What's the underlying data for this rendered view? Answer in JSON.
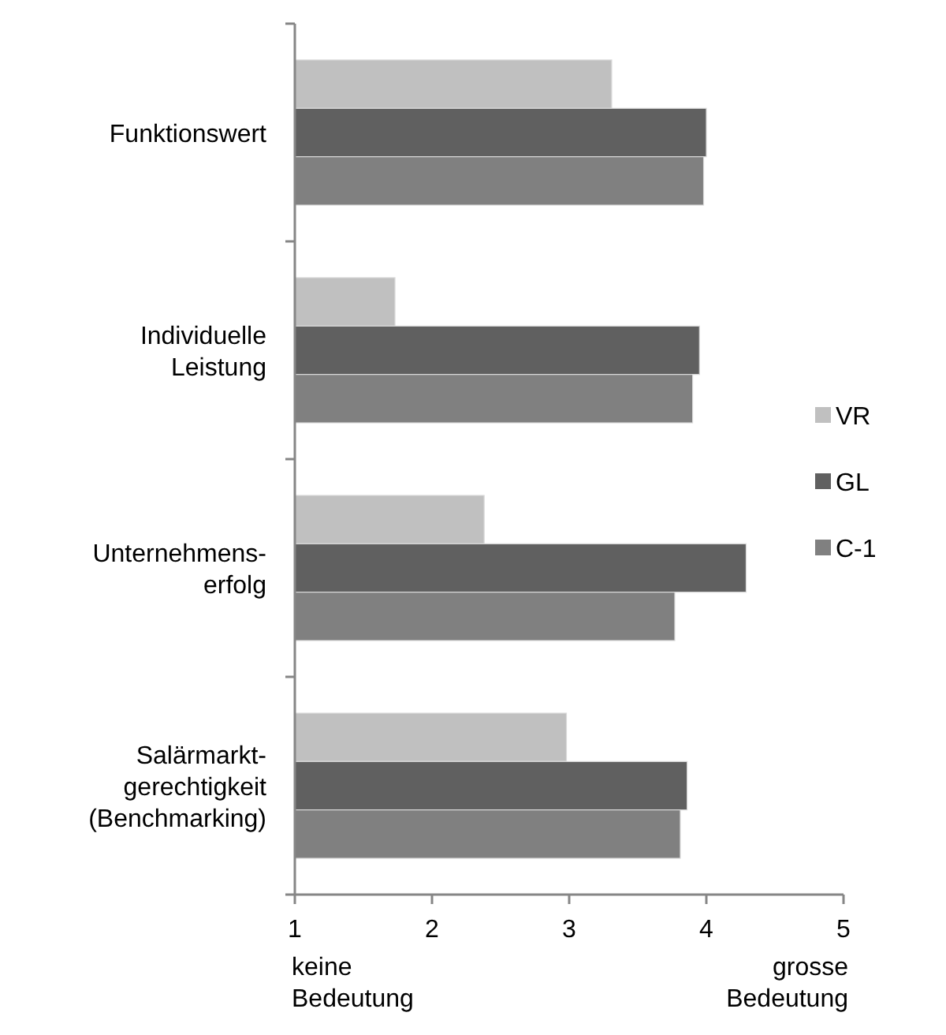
{
  "chart_data": {
    "type": "bar",
    "orientation": "horizontal",
    "categories": [
      "Funktionswert",
      "Individuelle\nLeistung",
      "Unternehmens-\nerfolg",
      "Salärmarkt-\ngerechtigkeit\n(Benchmarking)"
    ],
    "series": [
      {
        "name": "VR",
        "color": "#c0c0c0",
        "values": [
          3.31,
          1.73,
          2.38,
          2.98
        ]
      },
      {
        "name": "GL",
        "color": "#606060",
        "values": [
          4.0,
          3.95,
          4.29,
          3.86
        ]
      },
      {
        "name": "C-1",
        "color": "#808080",
        "values": [
          3.98,
          3.9,
          3.77,
          3.81
        ]
      }
    ],
    "xlim": [
      1,
      5
    ],
    "xticks": [
      1,
      2,
      3,
      4,
      5
    ],
    "grid": false,
    "legend": "right",
    "annotations": [
      "keine\nBedeutung",
      "grosse\nBedeutung"
    ]
  }
}
